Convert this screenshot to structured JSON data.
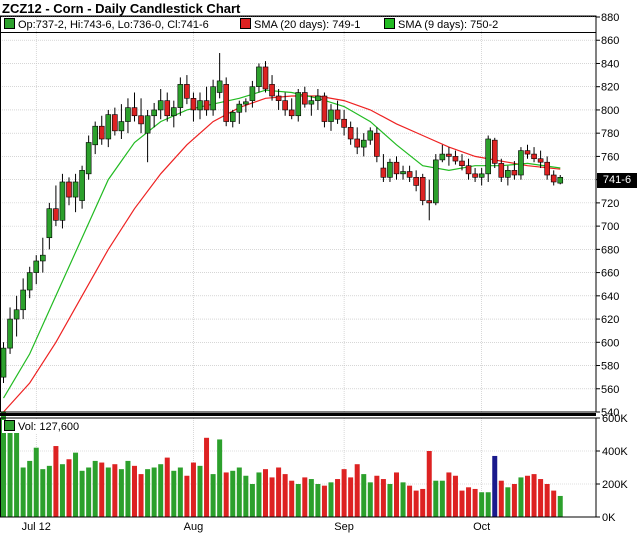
{
  "title": "ZCZ12 - Corn - Daily Candlestick Chart",
  "legend": {
    "ohlc": "Op:737-2, Hi:743-6, Lo:736-0, Cl:741-6",
    "sma20": "SMA (20 days): 749-1",
    "sma9": "SMA (9 days): 750-2"
  },
  "last_price_label": "741-6",
  "volume_label": "Vol: 127,600",
  "colors": {
    "up": "#2ca02c",
    "down": "#dd2222",
    "sma20": "#ee2222",
    "sma9": "#22bb22",
    "special_volume": "#1a1a8c",
    "grid": "#bfbfbf"
  },
  "chart_data": {
    "type": "candlestick",
    "price_axis": {
      "min": 540,
      "max": 880,
      "step": 20,
      "tick_labels": [
        "540",
        "560",
        "580",
        "600",
        "620",
        "640",
        "660",
        "680",
        "700",
        "720",
        "740",
        "760",
        "780",
        "800",
        "820",
        "840",
        "860",
        "880"
      ]
    },
    "volume_axis": {
      "min": 0,
      "max": 600000,
      "ticks": [
        0,
        200000,
        400000,
        600000
      ],
      "tick_labels": [
        "0K",
        "200K",
        "400K",
        "600K"
      ]
    },
    "x_labels": [
      {
        "label": "Jul 12",
        "index": 5
      },
      {
        "label": "Aug",
        "index": 29
      },
      {
        "label": "Sep",
        "index": 52
      },
      {
        "label": "Oct",
        "index": 73
      }
    ],
    "candles": [
      {
        "o": 570,
        "h": 600,
        "l": 565,
        "c": 595
      },
      {
        "o": 595,
        "h": 630,
        "l": 590,
        "c": 620
      },
      {
        "o": 620,
        "h": 640,
        "l": 605,
        "c": 628
      },
      {
        "o": 628,
        "h": 655,
        "l": 620,
        "c": 645
      },
      {
        "o": 645,
        "h": 665,
        "l": 638,
        "c": 660
      },
      {
        "o": 660,
        "h": 675,
        "l": 650,
        "c": 670
      },
      {
        "o": 670,
        "h": 690,
        "l": 660,
        "c": 675
      },
      {
        "o": 690,
        "h": 720,
        "l": 680,
        "c": 715
      },
      {
        "o": 715,
        "h": 735,
        "l": 700,
        "c": 705
      },
      {
        "o": 705,
        "h": 745,
        "l": 698,
        "c": 738
      },
      {
        "o": 738,
        "h": 742,
        "l": 718,
        "c": 725
      },
      {
        "o": 725,
        "h": 745,
        "l": 712,
        "c": 738
      },
      {
        "o": 722,
        "h": 752,
        "l": 715,
        "c": 748
      },
      {
        "o": 745,
        "h": 778,
        "l": 740,
        "c": 772
      },
      {
        "o": 770,
        "h": 790,
        "l": 762,
        "c": 786
      },
      {
        "o": 786,
        "h": 795,
        "l": 770,
        "c": 775
      },
      {
        "o": 775,
        "h": 800,
        "l": 768,
        "c": 796
      },
      {
        "o": 796,
        "h": 802,
        "l": 778,
        "c": 782
      },
      {
        "o": 782,
        "h": 805,
        "l": 775,
        "c": 790
      },
      {
        "o": 790,
        "h": 810,
        "l": 780,
        "c": 802
      },
      {
        "o": 802,
        "h": 815,
        "l": 790,
        "c": 795
      },
      {
        "o": 795,
        "h": 810,
        "l": 780,
        "c": 788
      },
      {
        "o": 780,
        "h": 800,
        "l": 755,
        "c": 795
      },
      {
        "o": 795,
        "h": 806,
        "l": 785,
        "c": 800
      },
      {
        "o": 800,
        "h": 818,
        "l": 792,
        "c": 808
      },
      {
        "o": 808,
        "h": 815,
        "l": 790,
        "c": 795
      },
      {
        "o": 795,
        "h": 808,
        "l": 785,
        "c": 802
      },
      {
        "o": 802,
        "h": 828,
        "l": 795,
        "c": 822
      },
      {
        "o": 822,
        "h": 830,
        "l": 805,
        "c": 810
      },
      {
        "o": 810,
        "h": 815,
        "l": 790,
        "c": 800
      },
      {
        "o": 800,
        "h": 815,
        "l": 792,
        "c": 808
      },
      {
        "o": 808,
        "h": 820,
        "l": 795,
        "c": 800
      },
      {
        "o": 800,
        "h": 826,
        "l": 795,
        "c": 820
      },
      {
        "o": 815,
        "h": 849,
        "l": 810,
        "c": 825
      },
      {
        "o": 822,
        "h": 828,
        "l": 786,
        "c": 790
      },
      {
        "o": 790,
        "h": 800,
        "l": 785,
        "c": 798
      },
      {
        "o": 798,
        "h": 808,
        "l": 788,
        "c": 805
      },
      {
        "o": 805,
        "h": 810,
        "l": 798,
        "c": 807
      },
      {
        "o": 808,
        "h": 825,
        "l": 802,
        "c": 820
      },
      {
        "o": 820,
        "h": 840,
        "l": 815,
        "c": 837
      },
      {
        "o": 837,
        "h": 842,
        "l": 815,
        "c": 818
      },
      {
        "o": 822,
        "h": 830,
        "l": 808,
        "c": 812
      },
      {
        "o": 812,
        "h": 818,
        "l": 800,
        "c": 808
      },
      {
        "o": 808,
        "h": 815,
        "l": 795,
        "c": 800
      },
      {
        "o": 800,
        "h": 810,
        "l": 792,
        "c": 795
      },
      {
        "o": 795,
        "h": 818,
        "l": 790,
        "c": 815
      },
      {
        "o": 815,
        "h": 820,
        "l": 802,
        "c": 805
      },
      {
        "o": 805,
        "h": 812,
        "l": 795,
        "c": 808
      },
      {
        "o": 808,
        "h": 818,
        "l": 800,
        "c": 812
      },
      {
        "o": 812,
        "h": 815,
        "l": 785,
        "c": 790
      },
      {
        "o": 790,
        "h": 805,
        "l": 782,
        "c": 800
      },
      {
        "o": 800,
        "h": 808,
        "l": 788,
        "c": 792
      },
      {
        "o": 792,
        "h": 800,
        "l": 778,
        "c": 785
      },
      {
        "o": 785,
        "h": 790,
        "l": 770,
        "c": 775
      },
      {
        "o": 775,
        "h": 785,
        "l": 762,
        "c": 768
      },
      {
        "o": 768,
        "h": 780,
        "l": 760,
        "c": 774
      },
      {
        "o": 774,
        "h": 785,
        "l": 770,
        "c": 782
      },
      {
        "o": 780,
        "h": 785,
        "l": 755,
        "c": 760
      },
      {
        "o": 750,
        "h": 762,
        "l": 738,
        "c": 742
      },
      {
        "o": 742,
        "h": 758,
        "l": 738,
        "c": 755
      },
      {
        "o": 755,
        "h": 760,
        "l": 740,
        "c": 745
      },
      {
        "o": 745,
        "h": 752,
        "l": 740,
        "c": 747
      },
      {
        "o": 747,
        "h": 752,
        "l": 738,
        "c": 742
      },
      {
        "o": 742,
        "h": 748,
        "l": 730,
        "c": 735
      },
      {
        "o": 742,
        "h": 745,
        "l": 718,
        "c": 722
      },
      {
        "o": 722,
        "h": 740,
        "l": 705,
        "c": 720
      },
      {
        "o": 720,
        "h": 762,
        "l": 718,
        "c": 757
      },
      {
        "o": 757,
        "h": 770,
        "l": 755,
        "c": 762
      },
      {
        "o": 762,
        "h": 768,
        "l": 752,
        "c": 760
      },
      {
        "o": 760,
        "h": 765,
        "l": 753,
        "c": 756
      },
      {
        "o": 756,
        "h": 762,
        "l": 748,
        "c": 752
      },
      {
        "o": 752,
        "h": 758,
        "l": 740,
        "c": 745
      },
      {
        "o": 745,
        "h": 750,
        "l": 738,
        "c": 742
      },
      {
        "o": 742,
        "h": 750,
        "l": 735,
        "c": 745
      },
      {
        "o": 745,
        "h": 778,
        "l": 738,
        "c": 775
      },
      {
        "o": 774,
        "h": 776,
        "l": 750,
        "c": 754
      },
      {
        "o": 754,
        "h": 758,
        "l": 738,
        "c": 742
      },
      {
        "o": 742,
        "h": 752,
        "l": 735,
        "c": 748
      },
      {
        "o": 748,
        "h": 756,
        "l": 740,
        "c": 744
      },
      {
        "o": 744,
        "h": 768,
        "l": 740,
        "c": 765
      },
      {
        "o": 765,
        "h": 770,
        "l": 758,
        "c": 762
      },
      {
        "o": 762,
        "h": 768,
        "l": 755,
        "c": 758
      },
      {
        "o": 758,
        "h": 765,
        "l": 750,
        "c": 755
      },
      {
        "o": 755,
        "h": 760,
        "l": 740,
        "c": 744
      },
      {
        "o": 744,
        "h": 748,
        "l": 735,
        "c": 738
      },
      {
        "o": 737,
        "h": 744,
        "l": 736,
        "c": 742
      }
    ],
    "volume": [
      640000,
      520000,
      560000,
      300000,
      340000,
      420000,
      290000,
      310000,
      430000,
      320000,
      350000,
      390000,
      280000,
      300000,
      340000,
      330000,
      300000,
      320000,
      290000,
      340000,
      310000,
      260000,
      290000,
      300000,
      320000,
      360000,
      280000,
      300000,
      250000,
      330000,
      310000,
      480000,
      260000,
      470000,
      270000,
      280000,
      300000,
      250000,
      200000,
      270000,
      290000,
      240000,
      300000,
      260000,
      220000,
      200000,
      240000,
      230000,
      200000,
      190000,
      210000,
      230000,
      290000,
      240000,
      320000,
      260000,
      210000,
      250000,
      230000,
      200000,
      270000,
      210000,
      190000,
      160000,
      170000,
      400000,
      220000,
      220000,
      270000,
      250000,
      160000,
      180000,
      170000,
      150000,
      150000,
      370000,
      220000,
      180000,
      200000,
      240000,
      250000,
      260000,
      230000,
      200000,
      160000,
      127600
    ],
    "volume_highlight_index": 75,
    "sma20": [
      [
        0,
        540
      ],
      [
        4,
        565
      ],
      [
        8,
        600
      ],
      [
        12,
        640
      ],
      [
        16,
        680
      ],
      [
        20,
        715
      ],
      [
        24,
        745
      ],
      [
        28,
        770
      ],
      [
        32,
        790
      ],
      [
        36,
        802
      ],
      [
        40,
        810
      ],
      [
        44,
        812
      ],
      [
        48,
        812
      ],
      [
        52,
        808
      ],
      [
        56,
        800
      ],
      [
        60,
        788
      ],
      [
        64,
        778
      ],
      [
        68,
        768
      ],
      [
        72,
        760
      ],
      [
        76,
        756
      ],
      [
        80,
        752
      ],
      [
        85,
        749
      ]
    ],
    "sma9": [
      [
        0,
        552
      ],
      [
        4,
        590
      ],
      [
        8,
        640
      ],
      [
        12,
        690
      ],
      [
        16,
        740
      ],
      [
        20,
        772
      ],
      [
        24,
        790
      ],
      [
        28,
        800
      ],
      [
        32,
        805
      ],
      [
        36,
        810
      ],
      [
        40,
        817
      ],
      [
        44,
        815
      ],
      [
        48,
        810
      ],
      [
        52,
        803
      ],
      [
        56,
        790
      ],
      [
        60,
        770
      ],
      [
        64,
        752
      ],
      [
        68,
        748
      ],
      [
        72,
        752
      ],
      [
        76,
        752
      ],
      [
        80,
        754
      ],
      [
        85,
        750
      ]
    ]
  }
}
